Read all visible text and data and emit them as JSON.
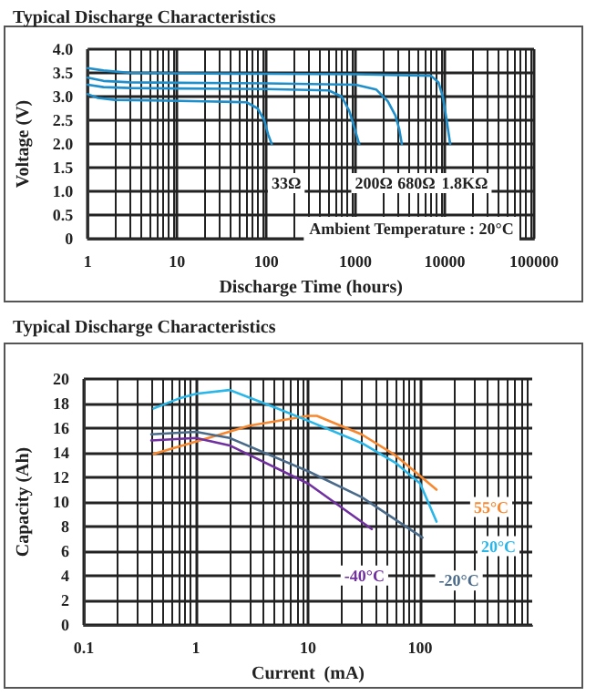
{
  "chart_data": [
    {
      "type": "line",
      "title": "Typical Discharge Characteristics",
      "xlabel": "Discharge Time (hours)",
      "ylabel": "Voltage (V)",
      "log": "x",
      "grid": true,
      "legend": false,
      "marker": "none",
      "line_style": "solid",
      "xlim": [
        1,
        100000
      ],
      "xticks": [
        1,
        10,
        100,
        1000,
        10000,
        100000
      ],
      "ylim": [
        0,
        4
      ],
      "yticks": [
        0,
        0.5,
        {
          "value": 1,
          "label": "1.0"
        },
        1.5,
        {
          "value": 2,
          "label": "2.0"
        },
        2.5,
        {
          "value": 3,
          "label": "3.0"
        },
        3.5,
        {
          "value": 4,
          "label": "4.0"
        }
      ],
      "annotations": [
        "Ambient Temperature : 20°C"
      ],
      "series": [
        {
          "name": "33Ω",
          "color": "#1f8fcc",
          "x": [
            1,
            1.3,
            2,
            5,
            20,
            60,
            80,
            95,
            105,
            115
          ],
          "values": [
            3.05,
            2.97,
            2.93,
            2.92,
            2.9,
            2.88,
            2.75,
            2.5,
            2.2,
            2.0
          ]
        },
        {
          "name": "200Ω",
          "color": "#1f8fcc",
          "x": [
            1,
            1.5,
            3,
            10,
            100,
            500,
            700,
            850,
            950,
            1100
          ],
          "values": [
            3.25,
            3.2,
            3.18,
            3.17,
            3.16,
            3.13,
            3.0,
            2.7,
            2.4,
            2.0
          ]
        },
        {
          "name": "680Ω",
          "color": "#1f8fcc",
          "x": [
            1,
            1.5,
            3,
            10,
            100,
            1000,
            1700,
            2300,
            2800,
            3100,
            3300
          ],
          "values": [
            3.4,
            3.33,
            3.3,
            3.29,
            3.28,
            3.25,
            3.15,
            2.9,
            2.6,
            2.3,
            2.0
          ]
        },
        {
          "name": "1.8KΩ",
          "color": "#1f8fcc",
          "x": [
            1,
            1.5,
            3,
            10,
            100,
            1000,
            7000,
            8500,
            9500,
            10500,
            11500
          ],
          "values": [
            3.6,
            3.55,
            3.5,
            3.49,
            3.48,
            3.47,
            3.44,
            3.3,
            3.0,
            2.5,
            2.0
          ]
        }
      ]
    },
    {
      "type": "line",
      "title": "Typical Discharge Characteristics",
      "xlabel": "Current  (mA)",
      "ylabel": "Capacity (Ah)",
      "log": "x",
      "grid": true,
      "legend": false,
      "marker": "none",
      "line_style": "solid",
      "xlim": [
        0.1,
        1000
      ],
      "xticks": [
        0.1,
        1,
        10,
        100
      ],
      "ylim": [
        0,
        20
      ],
      "yticks": [
        0,
        2,
        4,
        6,
        8,
        10,
        12,
        14,
        16,
        18,
        20
      ],
      "series": [
        {
          "name": "55°C",
          "color": "#f7882f",
          "x": [
            0.42,
            1,
            3,
            10,
            12,
            30,
            60,
            140
          ],
          "values": [
            13.9,
            14.9,
            16.2,
            17.0,
            17.0,
            15.5,
            13.8,
            11.0
          ]
        },
        {
          "name": "20°C",
          "color": "#29b6e8",
          "x": [
            0.42,
            0.7,
            1,
            2,
            5,
            10,
            30,
            60,
            100,
            140
          ],
          "values": [
            17.6,
            18.4,
            18.8,
            19.1,
            17.7,
            16.6,
            14.8,
            13.2,
            11.5,
            8.4
          ]
        },
        {
          "name": "-20°C",
          "color": "#4a6a8a",
          "x": [
            0.4,
            1,
            2,
            10,
            30,
            105
          ],
          "values": [
            15.5,
            15.7,
            15.2,
            12.5,
            10.4,
            7.1
          ]
        },
        {
          "name": "-40°C",
          "color": "#7030a0",
          "x": [
            0.4,
            1,
            2,
            10,
            37
          ],
          "values": [
            15.0,
            15.2,
            14.6,
            11.5,
            7.8
          ]
        }
      ]
    }
  ]
}
